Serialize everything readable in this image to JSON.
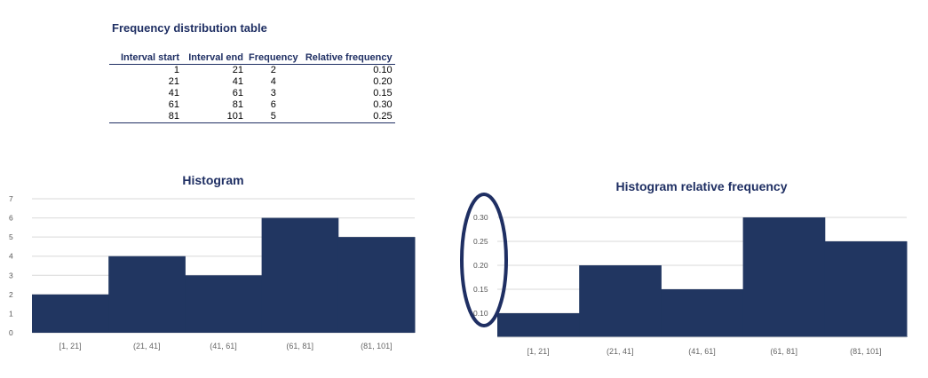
{
  "table": {
    "title": "Frequency distribution table",
    "headers": [
      "Interval start",
      "Interval end",
      "Frequency",
      "Relative frequency"
    ],
    "rows": [
      [
        "1",
        "21",
        "2",
        "0.10"
      ],
      [
        "21",
        "41",
        "4",
        "0.20"
      ],
      [
        "41",
        "61",
        "3",
        "0.15"
      ],
      [
        "61",
        "81",
        "6",
        "0.30"
      ],
      [
        "81",
        "101",
        "5",
        "0.25"
      ]
    ]
  },
  "colors": {
    "bar": "#213661",
    "title": "#1f2f63",
    "highlight_ellipse": "#1f2f63"
  },
  "chart_data": [
    {
      "type": "bar",
      "title": "Histogram",
      "categories": [
        "[1, 21]",
        "(21, 41]",
        "(41, 61]",
        "(61, 81]",
        "(81, 101]"
      ],
      "values": [
        2,
        4,
        3,
        6,
        5
      ],
      "xlabel": "",
      "ylabel": "",
      "ylim": [
        0,
        7
      ],
      "yticks": [
        "0",
        "1",
        "2",
        "3",
        "4",
        "5",
        "6",
        "7"
      ],
      "grid": true,
      "legend": false
    },
    {
      "type": "bar",
      "title": "Histogram relative frequency",
      "categories": [
        "[1, 21]",
        "(21, 41]",
        "(41, 61]",
        "(61, 81]",
        "(81, 101]"
      ],
      "values": [
        0.1,
        0.2,
        0.15,
        0.3,
        0.25
      ],
      "xlabel": "",
      "ylabel": "",
      "ylim": [
        0.05,
        0.3
      ],
      "yticks": [
        "0.10",
        "0.15",
        "0.20",
        "0.25",
        "0.30"
      ],
      "grid": true,
      "legend": false,
      "annotation": "hand-drawn ellipse circling the y-axis tick labels"
    }
  ]
}
